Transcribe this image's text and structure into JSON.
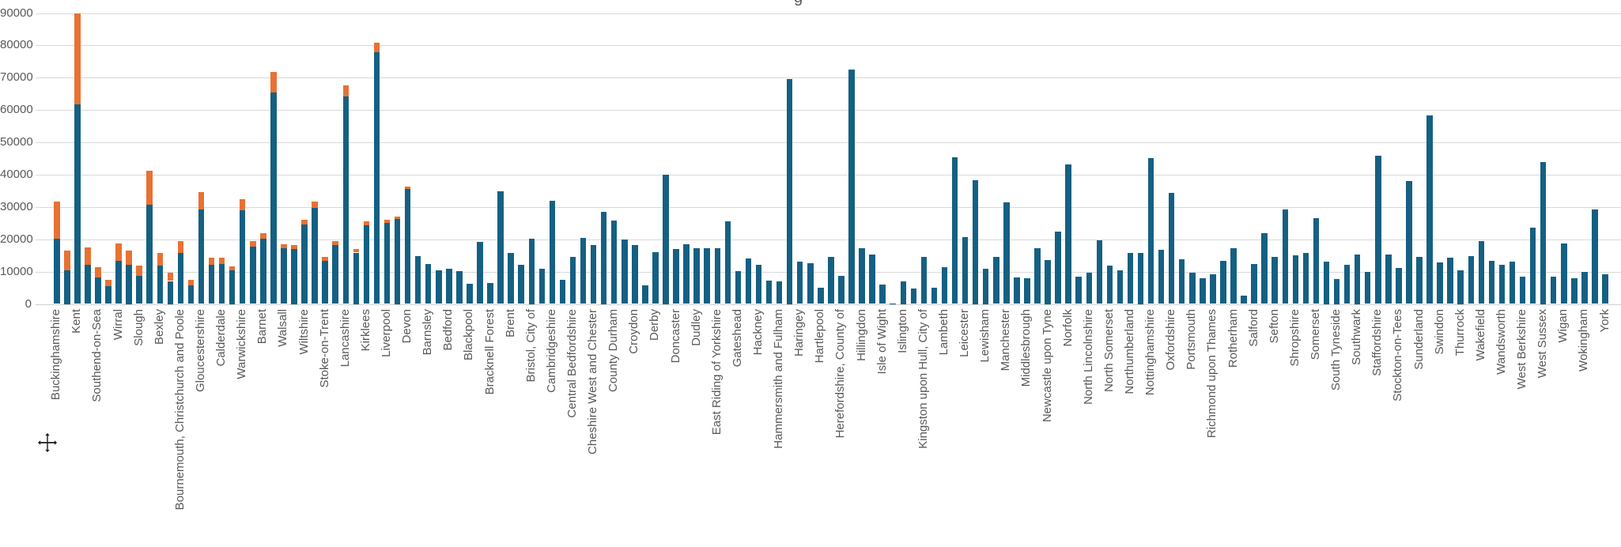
{
  "title_visible_fragment": "g",
  "colors": {
    "series_blue": "#156082",
    "series_orange": "#e97132",
    "gridline": "#d9d9d9",
    "axis_text": "#595959"
  },
  "chart_data": {
    "type": "bar",
    "stacked": true,
    "orientation": "vertical",
    "grid": "horizontal",
    "legend": "none",
    "ylim": [
      0,
      90000
    ],
    "y_tick_labels": [
      "0",
      "10000",
      "20000",
      "30000",
      "40000",
      "50000",
      "60000",
      "70000",
      "80000",
      "90000"
    ],
    "y_tick_values": [
      0,
      10000,
      20000,
      30000,
      40000,
      50000,
      60000,
      70000,
      80000,
      90000
    ],
    "series": [
      {
        "name": "blue",
        "color": "#156082"
      },
      {
        "name": "orange",
        "color": "#e97132"
      }
    ],
    "note": "x-axis labels appear on every second bar; unlabeled bars have label ''",
    "bars": [
      {
        "label": "Buckinghamshire",
        "blue": 20100,
        "orange": 11500
      },
      {
        "label": "",
        "blue": 10400,
        "orange": 6100
      },
      {
        "label": "Kent",
        "blue": 61800,
        "orange": 28200
      },
      {
        "label": "",
        "blue": 12200,
        "orange": 5200
      },
      {
        "label": "Southend-on-Sea",
        "blue": 8100,
        "orange": 3400
      },
      {
        "label": "",
        "blue": 5600,
        "orange": 1900
      },
      {
        "label": "Wirral",
        "blue": 13400,
        "orange": 5300
      },
      {
        "label": "",
        "blue": 12100,
        "orange": 4400
      },
      {
        "label": "Slough",
        "blue": 8600,
        "orange": 3200
      },
      {
        "label": "",
        "blue": 30600,
        "orange": 10600
      },
      {
        "label": "Bexley",
        "blue": 11800,
        "orange": 3900
      },
      {
        "label": "",
        "blue": 7100,
        "orange": 2500
      },
      {
        "label": "Bournemouth, Christchurch and Poole",
        "blue": 15800,
        "orange": 3700
      },
      {
        "label": "",
        "blue": 5700,
        "orange": 1700
      },
      {
        "label": "Gloucestershire",
        "blue": 29200,
        "orange": 5400
      },
      {
        "label": "",
        "blue": 12000,
        "orange": 2200
      },
      {
        "label": "Calderdale",
        "blue": 12300,
        "orange": 2100
      },
      {
        "label": "",
        "blue": 10400,
        "orange": 1200
      },
      {
        "label": "Warwickshire",
        "blue": 29000,
        "orange": 3300
      },
      {
        "label": "",
        "blue": 17800,
        "orange": 1600
      },
      {
        "label": "Barnet",
        "blue": 20200,
        "orange": 1800
      },
      {
        "label": "",
        "blue": 65500,
        "orange": 6400
      },
      {
        "label": "Walsall",
        "blue": 17300,
        "orange": 1100
      },
      {
        "label": "",
        "blue": 17000,
        "orange": 1300
      },
      {
        "label": "Wiltshire",
        "blue": 24500,
        "orange": 1600
      },
      {
        "label": "",
        "blue": 29700,
        "orange": 1900
      },
      {
        "label": "Stoke-on-Trent",
        "blue": 13300,
        "orange": 1200
      },
      {
        "label": "",
        "blue": 18200,
        "orange": 1200
      },
      {
        "label": "Lancashire",
        "blue": 64300,
        "orange": 3300
      },
      {
        "label": "",
        "blue": 15900,
        "orange": 1000
      },
      {
        "label": "Kirklees",
        "blue": 24300,
        "orange": 1200
      },
      {
        "label": "",
        "blue": 77800,
        "orange": 3000
      },
      {
        "label": "Liverpool",
        "blue": 25100,
        "orange": 900
      },
      {
        "label": "",
        "blue": 26300,
        "orange": 800
      },
      {
        "label": "Devon",
        "blue": 35500,
        "orange": 800
      },
      {
        "label": "",
        "blue": 14900,
        "orange": 0
      },
      {
        "label": "Barnsley",
        "blue": 12300,
        "orange": 0
      },
      {
        "label": "",
        "blue": 10500,
        "orange": 0
      },
      {
        "label": "Bedford",
        "blue": 10800,
        "orange": 0
      },
      {
        "label": "",
        "blue": 10100,
        "orange": 0
      },
      {
        "label": "Blackpool",
        "blue": 6300,
        "orange": 0
      },
      {
        "label": "",
        "blue": 19300,
        "orange": 0
      },
      {
        "label": "Bracknell Forest",
        "blue": 6400,
        "orange": 0
      },
      {
        "label": "",
        "blue": 34900,
        "orange": 0
      },
      {
        "label": "Brent",
        "blue": 15800,
        "orange": 0
      },
      {
        "label": "",
        "blue": 12000,
        "orange": 0
      },
      {
        "label": "Bristol, City of",
        "blue": 20300,
        "orange": 0
      },
      {
        "label": "",
        "blue": 10800,
        "orange": 0
      },
      {
        "label": "Cambridgeshire",
        "blue": 32000,
        "orange": 0
      },
      {
        "label": "",
        "blue": 7500,
        "orange": 0
      },
      {
        "label": "Central Bedfordshire",
        "blue": 14500,
        "orange": 0
      },
      {
        "label": "",
        "blue": 20400,
        "orange": 0
      },
      {
        "label": "Cheshire West and Chester",
        "blue": 18300,
        "orange": 0
      },
      {
        "label": "",
        "blue": 28500,
        "orange": 0
      },
      {
        "label": "County Durham",
        "blue": 25900,
        "orange": 0
      },
      {
        "label": "",
        "blue": 19900,
        "orange": 0
      },
      {
        "label": "Croydon",
        "blue": 18300,
        "orange": 0
      },
      {
        "label": "",
        "blue": 5700,
        "orange": 0
      },
      {
        "label": "Derby",
        "blue": 16100,
        "orange": 0
      },
      {
        "label": "",
        "blue": 40100,
        "orange": 0
      },
      {
        "label": "Doncaster",
        "blue": 16900,
        "orange": 0
      },
      {
        "label": "",
        "blue": 18500,
        "orange": 0
      },
      {
        "label": "Dudley",
        "blue": 17300,
        "orange": 0
      },
      {
        "label": "",
        "blue": 17200,
        "orange": 0
      },
      {
        "label": "East Riding of Yorkshire",
        "blue": 17200,
        "orange": 0
      },
      {
        "label": "",
        "blue": 25500,
        "orange": 0
      },
      {
        "label": "Gateshead",
        "blue": 10100,
        "orange": 0
      },
      {
        "label": "",
        "blue": 14000,
        "orange": 0
      },
      {
        "label": "Hackney",
        "blue": 12000,
        "orange": 0
      },
      {
        "label": "",
        "blue": 7300,
        "orange": 0
      },
      {
        "label": "Hammersmith and Fulham",
        "blue": 6900,
        "orange": 0
      },
      {
        "label": "",
        "blue": 69700,
        "orange": 0
      },
      {
        "label": "Haringey",
        "blue": 13000,
        "orange": 0
      },
      {
        "label": "",
        "blue": 12700,
        "orange": 0
      },
      {
        "label": "Hartlepool",
        "blue": 5100,
        "orange": 0
      },
      {
        "label": "",
        "blue": 14500,
        "orange": 0
      },
      {
        "label": "Herefordshire, County of",
        "blue": 8700,
        "orange": 0
      },
      {
        "label": "",
        "blue": 72500,
        "orange": 0
      },
      {
        "label": "Hillingdon",
        "blue": 17300,
        "orange": 0
      },
      {
        "label": "",
        "blue": 15300,
        "orange": 0
      },
      {
        "label": "Isle of Wight",
        "blue": 6100,
        "orange": 0
      },
      {
        "label": "",
        "blue": 200,
        "orange": 0
      },
      {
        "label": "Islington",
        "blue": 7100,
        "orange": 0
      },
      {
        "label": "",
        "blue": 4700,
        "orange": 0
      },
      {
        "label": "Kingston upon Hull, City of",
        "blue": 14600,
        "orange": 0
      },
      {
        "label": "",
        "blue": 5100,
        "orange": 0
      },
      {
        "label": "Lambeth",
        "blue": 11400,
        "orange": 0
      },
      {
        "label": "",
        "blue": 45300,
        "orange": 0
      },
      {
        "label": "Leicester",
        "blue": 20600,
        "orange": 0
      },
      {
        "label": "",
        "blue": 38400,
        "orange": 0
      },
      {
        "label": "Lewisham",
        "blue": 11000,
        "orange": 0
      },
      {
        "label": "",
        "blue": 14600,
        "orange": 0
      },
      {
        "label": "Manchester",
        "blue": 31400,
        "orange": 0
      },
      {
        "label": "",
        "blue": 8300,
        "orange": 0
      },
      {
        "label": "Middlesbrough",
        "blue": 7900,
        "orange": 0
      },
      {
        "label": "",
        "blue": 17300,
        "orange": 0
      },
      {
        "label": "Newcastle upon Tyne",
        "blue": 13700,
        "orange": 0
      },
      {
        "label": "",
        "blue": 22400,
        "orange": 0
      },
      {
        "label": "Norfolk",
        "blue": 43100,
        "orange": 0
      },
      {
        "label": "",
        "blue": 8500,
        "orange": 0
      },
      {
        "label": "North Lincolnshire",
        "blue": 9700,
        "orange": 0
      },
      {
        "label": "",
        "blue": 19600,
        "orange": 0
      },
      {
        "label": "North Somerset",
        "blue": 11800,
        "orange": 0
      },
      {
        "label": "",
        "blue": 10500,
        "orange": 0
      },
      {
        "label": "Northumberland",
        "blue": 15700,
        "orange": 0
      },
      {
        "label": "",
        "blue": 15900,
        "orange": 0
      },
      {
        "label": "Nottinghamshire",
        "blue": 45200,
        "orange": 0
      },
      {
        "label": "",
        "blue": 16700,
        "orange": 0
      },
      {
        "label": "Oxfordshire",
        "blue": 34300,
        "orange": 0
      },
      {
        "label": "",
        "blue": 13800,
        "orange": 0
      },
      {
        "label": "Portsmouth",
        "blue": 9600,
        "orange": 0
      },
      {
        "label": "",
        "blue": 7900,
        "orange": 0
      },
      {
        "label": "Richmond upon Thames",
        "blue": 9100,
        "orange": 0
      },
      {
        "label": "",
        "blue": 13400,
        "orange": 0
      },
      {
        "label": "Rotherham",
        "blue": 17200,
        "orange": 0
      },
      {
        "label": "",
        "blue": 2500,
        "orange": 0
      },
      {
        "label": "Salford",
        "blue": 12300,
        "orange": 0
      },
      {
        "label": "",
        "blue": 21800,
        "orange": 0
      },
      {
        "label": "Sefton",
        "blue": 14500,
        "orange": 0
      },
      {
        "label": "",
        "blue": 29200,
        "orange": 0
      },
      {
        "label": "Shropshire",
        "blue": 15000,
        "orange": 0
      },
      {
        "label": "",
        "blue": 15700,
        "orange": 0
      },
      {
        "label": "Somerset",
        "blue": 26500,
        "orange": 0
      },
      {
        "label": "",
        "blue": 13200,
        "orange": 0
      },
      {
        "label": "South Tyneside",
        "blue": 7700,
        "orange": 0
      },
      {
        "label": "",
        "blue": 12000,
        "orange": 0
      },
      {
        "label": "Southwark",
        "blue": 15400,
        "orange": 0
      },
      {
        "label": "",
        "blue": 10000,
        "orange": 0
      },
      {
        "label": "Staffordshire",
        "blue": 45900,
        "orange": 0
      },
      {
        "label": "",
        "blue": 15300,
        "orange": 0
      },
      {
        "label": "Stockton-on-Tees",
        "blue": 11200,
        "orange": 0
      },
      {
        "label": "",
        "blue": 38000,
        "orange": 0
      },
      {
        "label": "Sunderland",
        "blue": 14500,
        "orange": 0
      },
      {
        "label": "",
        "blue": 58300,
        "orange": 0
      },
      {
        "label": "Swindon",
        "blue": 12800,
        "orange": 0
      },
      {
        "label": "",
        "blue": 14200,
        "orange": 0
      },
      {
        "label": "Thurrock",
        "blue": 10400,
        "orange": 0
      },
      {
        "label": "",
        "blue": 14900,
        "orange": 0
      },
      {
        "label": "Wakefield",
        "blue": 19400,
        "orange": 0
      },
      {
        "label": "",
        "blue": 13400,
        "orange": 0
      },
      {
        "label": "Wandsworth",
        "blue": 12200,
        "orange": 0
      },
      {
        "label": "",
        "blue": 13100,
        "orange": 0
      },
      {
        "label": "West Berkshire",
        "blue": 8500,
        "orange": 0
      },
      {
        "label": "",
        "blue": 23500,
        "orange": 0
      },
      {
        "label": "West Sussex",
        "blue": 43900,
        "orange": 0
      },
      {
        "label": "",
        "blue": 8500,
        "orange": 0
      },
      {
        "label": "Wigan",
        "blue": 18600,
        "orange": 0
      },
      {
        "label": "",
        "blue": 8000,
        "orange": 0
      },
      {
        "label": "Wokingham",
        "blue": 9800,
        "orange": 0
      },
      {
        "label": "",
        "blue": 29200,
        "orange": 0
      },
      {
        "label": "York",
        "blue": 9100,
        "orange": 0
      }
    ]
  }
}
